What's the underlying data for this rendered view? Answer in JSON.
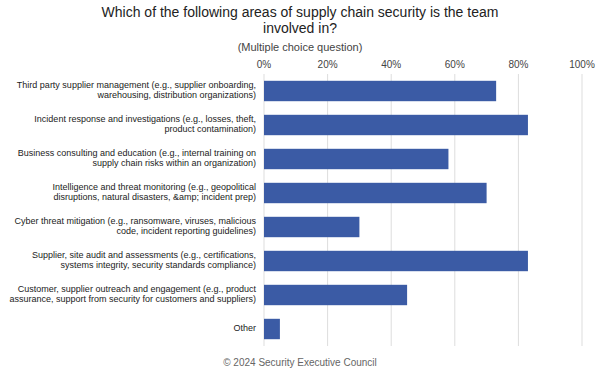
{
  "chart_data": {
    "type": "bar",
    "orientation": "horizontal",
    "title": "Which of the following areas of supply chain security is the team\ninvolved in?",
    "subtitle": "(Multiple choice question)",
    "categories": [
      "Third party supplier management (e.g., supplier onboarding,\nwarehousing, distribution organizations)",
      "Incident response and investigations (e.g., losses, theft,\nproduct contamination)",
      "Business consulting and education (e.g., internal training on\nsupply chain risks within an organization)",
      "Intelligence and threat monitoring (e.g., geopolitical\ndisruptions, natural disasters, &amp; incident prep)",
      "Cyber threat mitigation (e.g., ransomware, viruses, malicious\ncode, incident reporting guidelines)",
      "Supplier, site audit and assessments (e.g., certifications,\nsystems integrity, security standards compliance)",
      "Customer, supplier outreach and engagement (e.g., product\nassurance, support from security for customers and suppliers)",
      "Other"
    ],
    "values": [
      73,
      83,
      58,
      70,
      30,
      83,
      45,
      5
    ],
    "color": "#3B5BA5",
    "xlim": [
      0,
      100
    ],
    "xticks": [
      {
        "value": 0,
        "label": "0%"
      },
      {
        "value": 20,
        "label": "20%"
      },
      {
        "value": 40,
        "label": "40%"
      },
      {
        "value": 60,
        "label": "60%"
      },
      {
        "value": 80,
        "label": "80%"
      },
      {
        "value": 100,
        "label": "100%"
      }
    ],
    "grid": true,
    "annotations": [
      "© 2024 Security Executive Council"
    ]
  }
}
